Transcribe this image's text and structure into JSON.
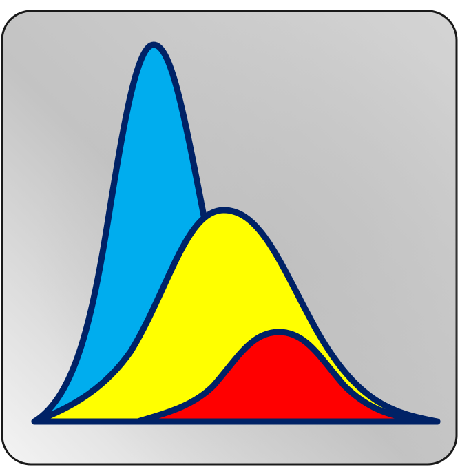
{
  "icon": {
    "name": "distribution-curves-icon",
    "curves": [
      {
        "name": "blue-distribution-curve",
        "fill": "#00adee"
      },
      {
        "name": "yellow-distribution-curve",
        "fill": "#ffff00"
      },
      {
        "name": "red-distribution-curve",
        "fill": "#ff0000"
      }
    ],
    "outline_color": "#002266",
    "background": {
      "gradient": [
        "#f4f4f4",
        "#c4c4c4",
        "#d2d2d2"
      ],
      "border_color": "#1a1a1a"
    }
  }
}
